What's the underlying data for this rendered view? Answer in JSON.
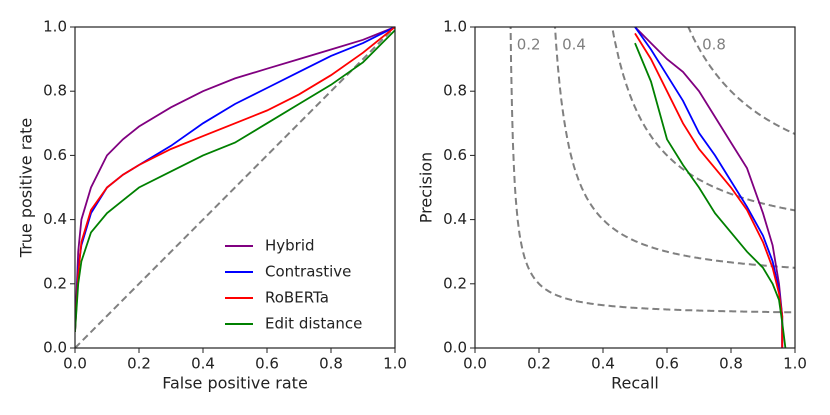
{
  "chart_data": [
    {
      "type": "line",
      "xlabel": "False positive rate",
      "ylabel": "True positive rate",
      "x": [
        0,
        0.01,
        0.02,
        0.05,
        0.1,
        0.15,
        0.2,
        0.3,
        0.4,
        0.5,
        0.6,
        0.7,
        0.8,
        0.9,
        1
      ],
      "series": [
        {
          "name": "Hybrid",
          "color": "#800080",
          "values": [
            0.05,
            0.3,
            0.4,
            0.5,
            0.6,
            0.65,
            0.69,
            0.75,
            0.8,
            0.84,
            0.87,
            0.9,
            0.93,
            0.96,
            1
          ]
        },
        {
          "name": "Contrastive",
          "color": "#0000ff",
          "values": [
            0.05,
            0.25,
            0.32,
            0.42,
            0.5,
            0.54,
            0.57,
            0.63,
            0.7,
            0.76,
            0.81,
            0.86,
            0.91,
            0.95,
            1
          ]
        },
        {
          "name": "RoBERTa",
          "color": "#ff0000",
          "values": [
            0.05,
            0.23,
            0.33,
            0.43,
            0.5,
            0.54,
            0.57,
            0.62,
            0.66,
            0.7,
            0.74,
            0.79,
            0.85,
            0.92,
            1
          ]
        },
        {
          "name": "Edit distance",
          "color": "#008000",
          "values": [
            0.05,
            0.2,
            0.27,
            0.36,
            0.42,
            0.46,
            0.5,
            0.55,
            0.6,
            0.64,
            0.7,
            0.76,
            0.82,
            0.89,
            0.99
          ]
        }
      ],
      "xlim": [
        0,
        1
      ],
      "ylim": [
        0,
        1
      ],
      "xticks": [
        {
          "value": 0,
          "label": "0.0"
        },
        0.2,
        0.4,
        0.6,
        0.8,
        {
          "value": 1,
          "label": "1.0"
        }
      ],
      "yticks": [
        {
          "value": 0,
          "label": "0.0"
        },
        0.2,
        0.4,
        0.6,
        0.8,
        {
          "value": 1,
          "label": "1.0"
        }
      ],
      "diagonal": true,
      "legend": "lower right"
    },
    {
      "type": "line",
      "xlabel": "Recall",
      "ylabel": "Precision",
      "series": [
        {
          "color": "#800080",
          "x": [
            0.5,
            0.55,
            0.6,
            0.65,
            0.7,
            0.75,
            0.8,
            0.85,
            0.9,
            0.93,
            0.95,
            0.96,
            0.96
          ],
          "values": [
            1,
            0.95,
            0.9,
            0.86,
            0.8,
            0.72,
            0.64,
            0.56,
            0.42,
            0.32,
            0.2,
            0.1,
            0
          ]
        },
        {
          "color": "#0000ff",
          "x": [
            0.5,
            0.55,
            0.6,
            0.65,
            0.7,
            0.75,
            0.8,
            0.85,
            0.9,
            0.93,
            0.95,
            0.96,
            0.96
          ],
          "values": [
            1,
            0.93,
            0.85,
            0.77,
            0.67,
            0.6,
            0.52,
            0.44,
            0.35,
            0.27,
            0.18,
            0.1,
            0
          ]
        },
        {
          "color": "#ff0000",
          "x": [
            0.5,
            0.55,
            0.6,
            0.65,
            0.7,
            0.75,
            0.8,
            0.85,
            0.9,
            0.93,
            0.95,
            0.96,
            0.96
          ],
          "values": [
            0.98,
            0.9,
            0.8,
            0.7,
            0.62,
            0.56,
            0.5,
            0.43,
            0.33,
            0.25,
            0.17,
            0.1,
            0
          ]
        },
        {
          "color": "#008000",
          "x": [
            0.5,
            0.55,
            0.6,
            0.65,
            0.7,
            0.75,
            0.8,
            0.85,
            0.9,
            0.93,
            0.95,
            0.96,
            0.97
          ],
          "values": [
            0.95,
            0.83,
            0.65,
            0.57,
            0.5,
            0.42,
            0.36,
            0.3,
            0.25,
            0.2,
            0.15,
            0.08,
            0
          ]
        }
      ],
      "xlim": [
        0,
        1
      ],
      "ylim": [
        0,
        1
      ],
      "xticks": [
        {
          "value": 0,
          "label": "0.0"
        },
        0.2,
        0.4,
        0.6,
        0.8,
        {
          "value": 1,
          "label": "1.0"
        }
      ],
      "yticks": [
        {
          "value": 0,
          "label": "0.0"
        },
        0.2,
        0.4,
        0.6,
        0.8,
        {
          "value": 1,
          "label": "1.0"
        }
      ],
      "iso_f1": [
        0.2,
        0.4,
        0.6,
        0.8
      ],
      "iso_f1_labeled": [
        true,
        true,
        false,
        true
      ]
    }
  ]
}
